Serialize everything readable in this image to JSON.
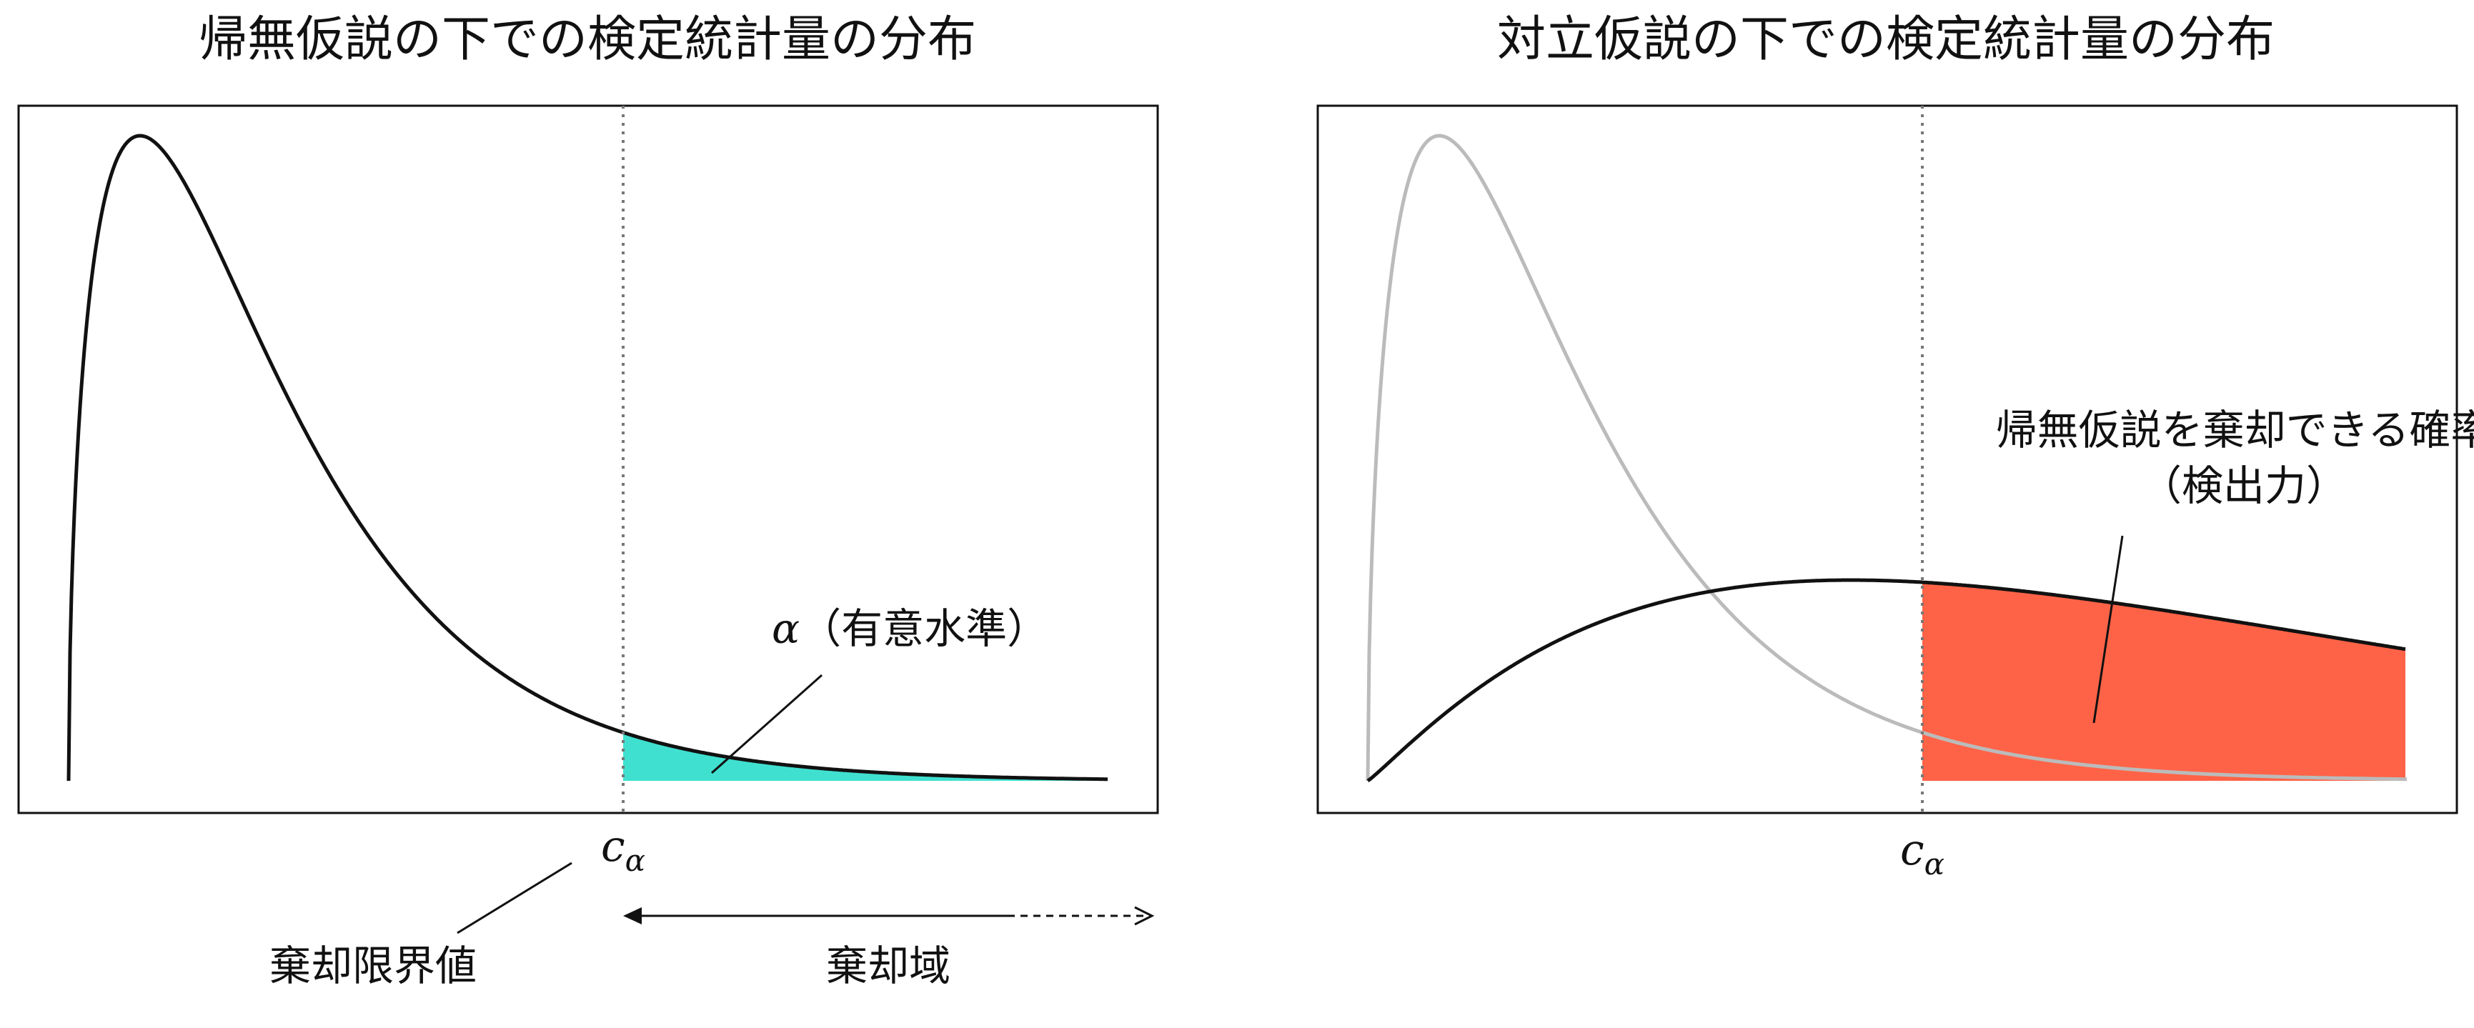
{
  "left_panel": {
    "title": "帰無仮説の下での検定統計量の分布",
    "critical_symbol": "c",
    "critical_subscript": "α",
    "alpha_symbol": "α",
    "alpha_label": "（有意水準）",
    "critical_value_label": "棄却限界値",
    "rejection_region_label": "棄却域",
    "null_curve_color": "#111111",
    "alpha_area_color": "#40E0D0"
  },
  "right_panel": {
    "title": "対立仮説の下での検定統計量の分布",
    "critical_symbol": "c",
    "critical_subscript": "α",
    "power_label_line1": "帰無仮説を棄却できる確率",
    "power_label_line2": "（検出力）",
    "null_curve_color": "#bbbbbb",
    "alt_curve_color": "#111111",
    "power_area_color": "#FF6347"
  }
}
